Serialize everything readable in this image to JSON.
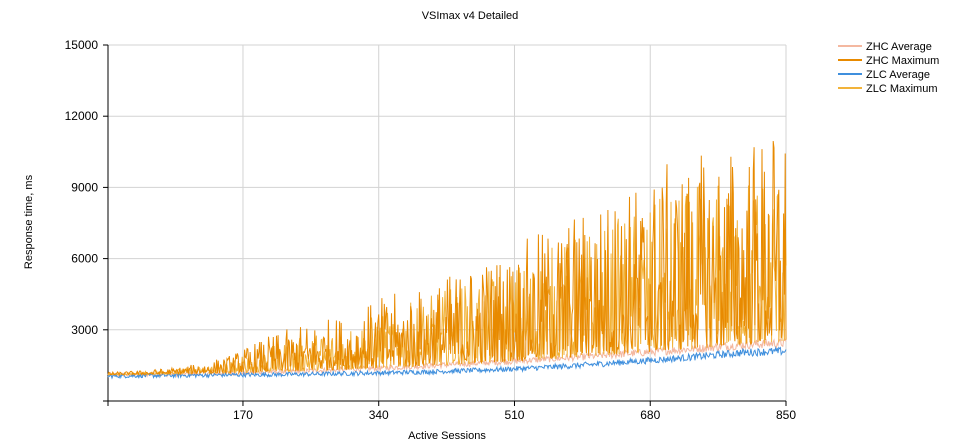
{
  "chart_data": {
    "type": "line",
    "title": "VSImax v4 Detailed",
    "xlabel": "Active Sessions",
    "ylabel": "Response time, ms",
    "xlim": [
      1,
      850
    ],
    "ylim": [
      0,
      15000
    ],
    "xticks": [
      170,
      340,
      510,
      680,
      850
    ],
    "yticks": [
      3000,
      6000,
      9000,
      12000,
      15000
    ],
    "grid": true,
    "legend_position": "top-right",
    "x": [
      1,
      50,
      100,
      150,
      200,
      250,
      300,
      350,
      400,
      450,
      500,
      550,
      600,
      650,
      700,
      750,
      800,
      850
    ],
    "series": [
      {
        "name": "ZHC Average",
        "color": "#f4b8a0",
        "values": [
          1100,
          1120,
          1150,
          1180,
          1220,
          1270,
          1330,
          1400,
          1480,
          1570,
          1660,
          1760,
          1870,
          1990,
          2110,
          2240,
          2380,
          2450
        ]
      },
      {
        "name": "ZHC Maximum",
        "color": "#e88a00",
        "values": [
          1150,
          1200,
          1300,
          1500,
          1900,
          2200,
          2400,
          2800,
          3000,
          3500,
          3800,
          4300,
          4800,
          5200,
          5700,
          6000,
          6400,
          6600
        ]
      },
      {
        "name": "ZLC Average",
        "color": "#3f8fdd",
        "values": [
          1050,
          1070,
          1080,
          1100,
          1110,
          1130,
          1160,
          1190,
          1230,
          1280,
          1340,
          1420,
          1520,
          1640,
          1760,
          1900,
          2050,
          2100
        ]
      },
      {
        "name": "ZLC Maximum",
        "color": "#f2b33a",
        "values": [
          1120,
          1180,
          1260,
          1400,
          1700,
          1950,
          2200,
          2500,
          2800,
          3200,
          3500,
          3900,
          4300,
          4700,
          5100,
          5400,
          5800,
          6000
        ]
      }
    ]
  }
}
